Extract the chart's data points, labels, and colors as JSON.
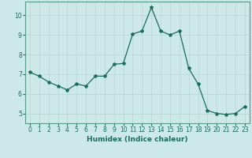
{
  "x": [
    0,
    1,
    2,
    3,
    4,
    5,
    6,
    7,
    8,
    9,
    10,
    11,
    12,
    13,
    14,
    15,
    16,
    17,
    18,
    19,
    20,
    21,
    22,
    23
  ],
  "y": [
    7.1,
    6.9,
    6.6,
    6.4,
    6.2,
    6.5,
    6.4,
    6.9,
    6.9,
    7.5,
    7.55,
    9.05,
    9.2,
    10.4,
    9.2,
    9.0,
    9.2,
    7.3,
    6.5,
    5.15,
    5.0,
    4.95,
    5.0,
    5.35
  ],
  "bg_color": "#cce8e8",
  "line_color": "#1a6b5a",
  "marker": "*",
  "grid_color": "#b8d4d4",
  "xlabel": "Humidex (Indice chaleur)",
  "xlim": [
    -0.5,
    23.5
  ],
  "ylim": [
    4.5,
    10.7
  ],
  "yticks": [
    5,
    6,
    7,
    8,
    9,
    10
  ],
  "xticks": [
    0,
    1,
    2,
    3,
    4,
    5,
    6,
    7,
    8,
    9,
    10,
    11,
    12,
    13,
    14,
    15,
    16,
    17,
    18,
    19,
    20,
    21,
    22,
    23
  ],
  "font_color": "#1a6b5a",
  "label_fontsize": 6.5,
  "tick_fontsize": 5.5,
  "linewidth": 0.9,
  "markersize": 3.0,
  "spine_color": "#5a9a8a"
}
